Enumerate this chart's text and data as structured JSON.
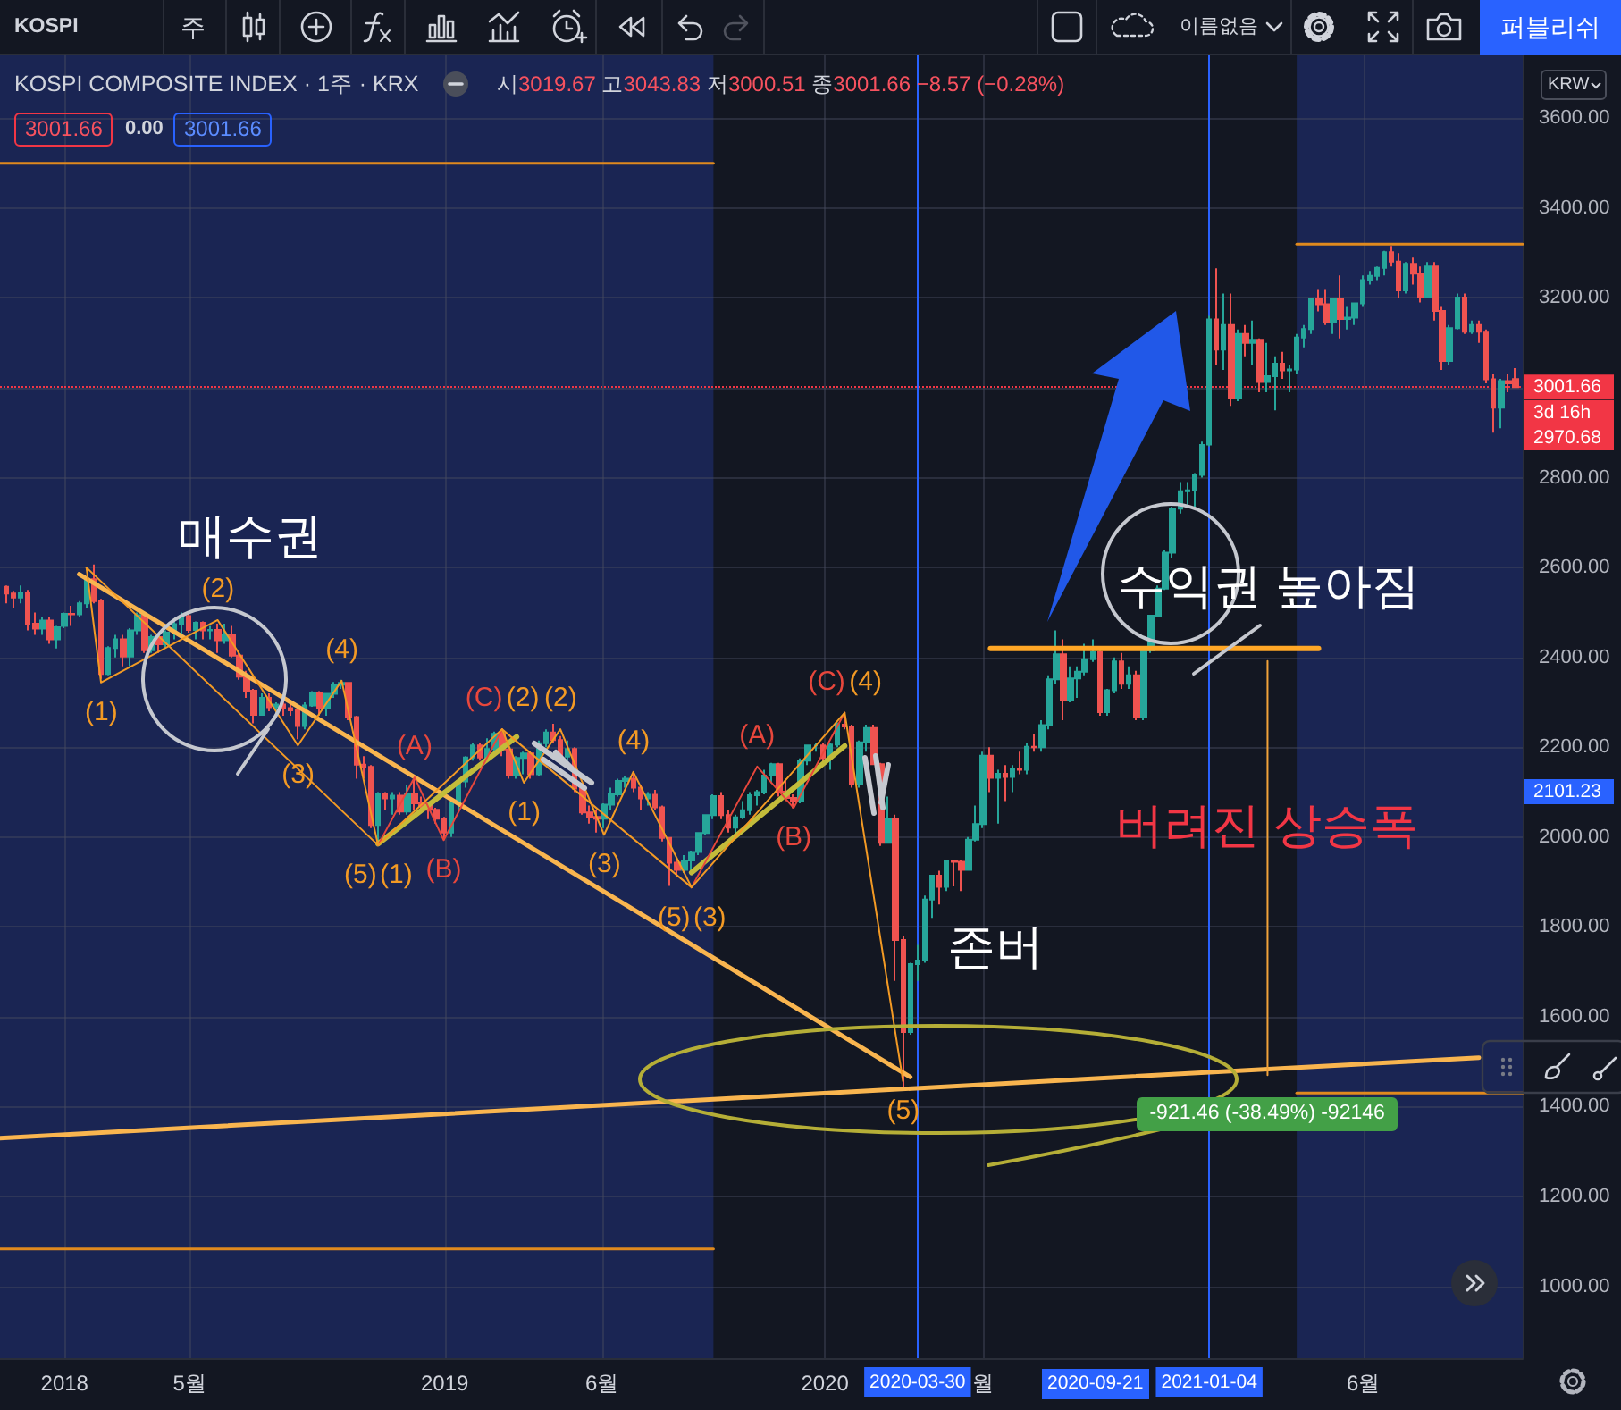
{
  "chart_data": {
    "type": "candlestick",
    "title": "KOSPI COMPOSITE INDEX · 1주 · KRX",
    "subtitle": "시3019.67 고3043.83 저3000.51 종3001.66 −8.57 (−0.28%)",
    "x": [
      "2017-11-06",
      "2017-11-13",
      "2017-11-20",
      "2017-11-27",
      "2017-12-04",
      "2017-12-11",
      "2017-12-18",
      "2017-12-25",
      "2018-01-01",
      "2018-01-08",
      "2018-01-15",
      "2018-01-22",
      "2018-01-29",
      "2018-02-05",
      "2018-02-12",
      "2018-02-19",
      "2018-02-26",
      "2018-03-05",
      "2018-03-12",
      "2018-03-19",
      "2018-03-26",
      "2018-04-02",
      "2018-04-09",
      "2018-04-16",
      "2018-04-23",
      "2018-04-30",
      "2018-05-07",
      "2018-05-14",
      "2018-05-21",
      "2018-05-28",
      "2018-06-04",
      "2018-06-11",
      "2018-06-18",
      "2018-06-25",
      "2018-07-02",
      "2018-07-09",
      "2018-07-16",
      "2018-07-23",
      "2018-07-30",
      "2018-08-06",
      "2018-08-13",
      "2018-08-20",
      "2018-08-27",
      "2018-09-03",
      "2018-09-10",
      "2018-09-17",
      "2018-09-24",
      "2018-10-01",
      "2018-10-08",
      "2018-10-15",
      "2018-10-22",
      "2018-10-29",
      "2018-11-05",
      "2018-11-12",
      "2018-11-19",
      "2018-11-26",
      "2018-12-03",
      "2018-12-10",
      "2018-12-17",
      "2018-12-24",
      "2018-12-31",
      "2019-01-07",
      "2019-01-14",
      "2019-01-21",
      "2019-01-28",
      "2019-02-04",
      "2019-02-11",
      "2019-02-18",
      "2019-02-25",
      "2019-03-04",
      "2019-03-11",
      "2019-03-18",
      "2019-03-25",
      "2019-04-01",
      "2019-04-08",
      "2019-04-15",
      "2019-04-22",
      "2019-04-29",
      "2019-05-06",
      "2019-05-13",
      "2019-05-20",
      "2019-05-27",
      "2019-06-03",
      "2019-06-10",
      "2019-06-17",
      "2019-06-24",
      "2019-07-01",
      "2019-07-08",
      "2019-07-15",
      "2019-07-22",
      "2019-07-29",
      "2019-08-05",
      "2019-08-12",
      "2019-08-19",
      "2019-08-26",
      "2019-09-02",
      "2019-09-09",
      "2019-09-16",
      "2019-09-23",
      "2019-09-30",
      "2019-10-07",
      "2019-10-14",
      "2019-10-21",
      "2019-10-28",
      "2019-11-04",
      "2019-11-11",
      "2019-11-18",
      "2019-11-25",
      "2019-12-02",
      "2019-12-09",
      "2019-12-16",
      "2019-12-23",
      "2019-12-30",
      "2020-01-06",
      "2020-01-13",
      "2020-01-20",
      "2020-01-27",
      "2020-02-03",
      "2020-02-10",
      "2020-02-17",
      "2020-02-24",
      "2020-03-02",
      "2020-03-09",
      "2020-03-16",
      "2020-03-23",
      "2020-03-30",
      "2020-04-06",
      "2020-04-13",
      "2020-04-20",
      "2020-04-27",
      "2020-05-04",
      "2020-05-11",
      "2020-05-18",
      "2020-05-25",
      "2020-06-01",
      "2020-06-08",
      "2020-06-15",
      "2020-06-22",
      "2020-06-29",
      "2020-07-06",
      "2020-07-13",
      "2020-07-20",
      "2020-07-27",
      "2020-08-03",
      "2020-08-10",
      "2020-08-17",
      "2020-08-24",
      "2020-08-31",
      "2020-09-07",
      "2020-09-14",
      "2020-09-21",
      "2020-09-28",
      "2020-10-05",
      "2020-10-12",
      "2020-10-19",
      "2020-10-26",
      "2020-11-02",
      "2020-11-09",
      "2020-11-16",
      "2020-11-23",
      "2020-11-30",
      "2020-12-07",
      "2020-12-14",
      "2020-12-21",
      "2020-12-28",
      "2021-01-04",
      "2021-01-11",
      "2021-01-18",
      "2021-01-25",
      "2021-02-01",
      "2021-02-08",
      "2021-02-15",
      "2021-02-22",
      "2021-03-01",
      "2021-03-08",
      "2021-03-15",
      "2021-03-22",
      "2021-03-29",
      "2021-04-05",
      "2021-04-12",
      "2021-04-19",
      "2021-04-26",
      "2021-05-03",
      "2021-05-10",
      "2021-05-17",
      "2021-05-24",
      "2021-05-31",
      "2021-06-07",
      "2021-06-14",
      "2021-06-21",
      "2021-06-28",
      "2021-07-05",
      "2021-07-12",
      "2021-07-19",
      "2021-07-26",
      "2021-08-02",
      "2021-08-09",
      "2021-08-16",
      "2021-08-23",
      "2021-08-30",
      "2021-09-06",
      "2021-09-13",
      "2021-09-20",
      "2021-09-27",
      "2021-10-04",
      "2021-10-11",
      "2021-10-18",
      "2021-10-25"
    ],
    "ohlc": [
      [
        2557,
        2560,
        2520,
        2542
      ],
      [
        2542,
        2548,
        2510,
        2533
      ],
      [
        2533,
        2560,
        2520,
        2544
      ],
      [
        2544,
        2550,
        2460,
        2475
      ],
      [
        2475,
        2500,
        2450,
        2464
      ],
      [
        2464,
        2490,
        2450,
        2482
      ],
      [
        2482,
        2490,
        2430,
        2440
      ],
      [
        2440,
        2470,
        2420,
        2467
      ],
      [
        2470,
        2500,
        2465,
        2497
      ],
      [
        2497,
        2515,
        2470,
        2496
      ],
      [
        2496,
        2525,
        2490,
        2520
      ],
      [
        2520,
        2580,
        2510,
        2574
      ],
      [
        2574,
        2607,
        2520,
        2525
      ],
      [
        2525,
        2530,
        2352,
        2363
      ],
      [
        2363,
        2425,
        2360,
        2421
      ],
      [
        2421,
        2450,
        2400,
        2440
      ],
      [
        2440,
        2450,
        2380,
        2402
      ],
      [
        2402,
        2465,
        2380,
        2460
      ],
      [
        2460,
        2500,
        2450,
        2494
      ],
      [
        2494,
        2500,
        2410,
        2416
      ],
      [
        2416,
        2450,
        2410,
        2445
      ],
      [
        2445,
        2450,
        2410,
        2429
      ],
      [
        2429,
        2460,
        2420,
        2455
      ],
      [
        2455,
        2480,
        2440,
        2474
      ],
      [
        2474,
        2500,
        2440,
        2492
      ],
      [
        2492,
        2500,
        2455,
        2461
      ],
      [
        2461,
        2480,
        2440,
        2477
      ],
      [
        2477,
        2480,
        2440,
        2460
      ],
      [
        2460,
        2470,
        2440,
        2461
      ],
      [
        2461,
        2475,
        2410,
        2438
      ],
      [
        2438,
        2475,
        2430,
        2451
      ],
      [
        2451,
        2470,
        2400,
        2404
      ],
      [
        2404,
        2410,
        2350,
        2357
      ],
      [
        2357,
        2370,
        2310,
        2326
      ],
      [
        2326,
        2330,
        2253,
        2272
      ],
      [
        2272,
        2320,
        2270,
        2310
      ],
      [
        2310,
        2320,
        2280,
        2289
      ],
      [
        2289,
        2300,
        2270,
        2295
      ],
      [
        2295,
        2310,
        2270,
        2287
      ],
      [
        2287,
        2305,
        2270,
        2282
      ],
      [
        2282,
        2285,
        2218,
        2247
      ],
      [
        2247,
        2300,
        2240,
        2293
      ],
      [
        2293,
        2325,
        2290,
        2322
      ],
      [
        2322,
        2325,
        2270,
        2287
      ],
      [
        2287,
        2320,
        2270,
        2319
      ],
      [
        2319,
        2345,
        2310,
        2339
      ],
      [
        2339,
        2350,
        2330,
        2343
      ],
      [
        2343,
        2345,
        2260,
        2267
      ],
      [
        2267,
        2270,
        2130,
        2161
      ],
      [
        2161,
        2180,
        2130,
        2156
      ],
      [
        2156,
        2160,
        2020,
        2027
      ],
      [
        2027,
        2100,
        1985,
        2096
      ],
      [
        2096,
        2100,
        2060,
        2086
      ],
      [
        2086,
        2100,
        2050,
        2092
      ],
      [
        2092,
        2100,
        2050,
        2057
      ],
      [
        2057,
        2115,
        2050,
        2097
      ],
      [
        2097,
        2136,
        2060,
        2075
      ],
      [
        2075,
        2090,
        2060,
        2069
      ],
      [
        2069,
        2075,
        2040,
        2061
      ],
      [
        2061,
        2065,
        2030,
        2041
      ],
      [
        2041,
        2045,
        1993,
        2010
      ],
      [
        2010,
        2080,
        2000,
        2075
      ],
      [
        2075,
        2125,
        2060,
        2124
      ],
      [
        2124,
        2180,
        2110,
        2177
      ],
      [
        2177,
        2210,
        2170,
        2204
      ],
      [
        2204,
        2210,
        2170,
        2177
      ],
      [
        2177,
        2220,
        2170,
        2196
      ],
      [
        2196,
        2235,
        2190,
        2230
      ],
      [
        2230,
        2236,
        2180,
        2195
      ],
      [
        2195,
        2200,
        2130,
        2137
      ],
      [
        2137,
        2180,
        2130,
        2176
      ],
      [
        2176,
        2190,
        2140,
        2186
      ],
      [
        2186,
        2190,
        2130,
        2140
      ],
      [
        2140,
        2215,
        2135,
        2209
      ],
      [
        2209,
        2240,
        2200,
        2233
      ],
      [
        2233,
        2252,
        2210,
        2216
      ],
      [
        2216,
        2225,
        2170,
        2179
      ],
      [
        2179,
        2215,
        2170,
        2196
      ],
      [
        2196,
        2200,
        2100,
        2108
      ],
      [
        2108,
        2110,
        2050,
        2055
      ],
      [
        2055,
        2070,
        2030,
        2045
      ],
      [
        2045,
        2060,
        2010,
        2041
      ],
      [
        2041,
        2075,
        2020,
        2072
      ],
      [
        2072,
        2110,
        2060,
        2095
      ],
      [
        2095,
        2130,
        2090,
        2125
      ],
      [
        2125,
        2135,
        2110,
        2130
      ],
      [
        2130,
        2141,
        2100,
        2110
      ],
      [
        2110,
        2115,
        2060,
        2086
      ],
      [
        2086,
        2100,
        2070,
        2094
      ],
      [
        2094,
        2105,
        2060,
        2066
      ],
      [
        2066,
        2070,
        1990,
        1998
      ],
      [
        1998,
        2000,
        1891,
        1943
      ],
      [
        1943,
        1950,
        1910,
        1927
      ],
      [
        1927,
        1960,
        1920,
        1948
      ],
      [
        1948,
        1970,
        1920,
        1967
      ],
      [
        1967,
        2010,
        1960,
        2009
      ],
      [
        2009,
        2050,
        2005,
        2049
      ],
      [
        2049,
        2095,
        2040,
        2091
      ],
      [
        2091,
        2100,
        2040,
        2049
      ],
      [
        2049,
        2060,
        2010,
        2021
      ],
      [
        2021,
        2050,
        2000,
        2044
      ],
      [
        2044,
        2080,
        2040,
        2060
      ],
      [
        2060,
        2100,
        2050,
        2093
      ],
      [
        2093,
        2105,
        2070,
        2100
      ],
      [
        2100,
        2150,
        2095,
        2137
      ],
      [
        2137,
        2165,
        2120,
        2162
      ],
      [
        2162,
        2165,
        2090,
        2101
      ],
      [
        2101,
        2130,
        2080,
        2087
      ],
      [
        2087,
        2095,
        2064,
        2081
      ],
      [
        2081,
        2175,
        2075,
        2170
      ],
      [
        2170,
        2205,
        2160,
        2204
      ],
      [
        2204,
        2210,
        2190,
        2204
      ],
      [
        2204,
        2210,
        2160,
        2176
      ],
      [
        2176,
        2210,
        2150,
        2206
      ],
      [
        2206,
        2255,
        2200,
        2250
      ],
      [
        2250,
        2277,
        2240,
        2246
      ],
      [
        2246,
        2250,
        2110,
        2119
      ],
      [
        2119,
        2215,
        2110,
        2211
      ],
      [
        2211,
        2250,
        2190,
        2243
      ],
      [
        2243,
        2250,
        2160,
        2162
      ],
      [
        2162,
        2165,
        1980,
        1987
      ],
      [
        1987,
        2090,
        1985,
        2040
      ],
      [
        2040,
        2050,
        1680,
        1771
      ],
      [
        1771,
        1780,
        1439,
        1566
      ],
      [
        1566,
        1720,
        1560,
        1717
      ],
      [
        1717,
        1760,
        1680,
        1725
      ],
      [
        1725,
        1870,
        1720,
        1861
      ],
      [
        1861,
        1915,
        1820,
        1914
      ],
      [
        1914,
        1925,
        1850,
        1889
      ],
      [
        1889,
        1950,
        1880,
        1947
      ],
      [
        1947,
        1950,
        1890,
        1945
      ],
      [
        1945,
        1950,
        1880,
        1927
      ],
      [
        1927,
        2000,
        1925,
        1994
      ],
      [
        1994,
        2070,
        1990,
        2029
      ],
      [
        2029,
        2190,
        2020,
        2181
      ],
      [
        2181,
        2200,
        2100,
        2132
      ],
      [
        2132,
        2150,
        2030,
        2141
      ],
      [
        2141,
        2160,
        2080,
        2134
      ],
      [
        2134,
        2160,
        2100,
        2152
      ],
      [
        2152,
        2190,
        2140,
        2150
      ],
      [
        2150,
        2210,
        2140,
        2201
      ],
      [
        2201,
        2230,
        2190,
        2200
      ],
      [
        2200,
        2260,
        2190,
        2249
      ],
      [
        2249,
        2360,
        2240,
        2351
      ],
      [
        2351,
        2460,
        2340,
        2407
      ],
      [
        2407,
        2440,
        2260,
        2304
      ],
      [
        2304,
        2380,
        2300,
        2353
      ],
      [
        2353,
        2380,
        2310,
        2368
      ],
      [
        2368,
        2430,
        2360,
        2396
      ],
      [
        2396,
        2440,
        2390,
        2412
      ],
      [
        2412,
        2415,
        2270,
        2278
      ],
      [
        2278,
        2330,
        2270,
        2327
      ],
      [
        2327,
        2400,
        2320,
        2391
      ],
      [
        2391,
        2410,
        2330,
        2341
      ],
      [
        2341,
        2380,
        2330,
        2360
      ],
      [
        2360,
        2370,
        2260,
        2267
      ],
      [
        2267,
        2420,
        2260,
        2416
      ],
      [
        2416,
        2495,
        2410,
        2493
      ],
      [
        2493,
        2560,
        2490,
        2553
      ],
      [
        2553,
        2640,
        2550,
        2633
      ],
      [
        2633,
        2735,
        2620,
        2731
      ],
      [
        2731,
        2790,
        2720,
        2770
      ],
      [
        2770,
        2790,
        2740,
        2772
      ],
      [
        2772,
        2810,
        2730,
        2806
      ],
      [
        2806,
        2880,
        2800,
        2873
      ],
      [
        2874,
        3160,
        2870,
        3152
      ],
      [
        3152,
        3266,
        3050,
        3085
      ],
      [
        3085,
        3210,
        3040,
        3140
      ],
      [
        3140,
        3210,
        2960,
        2976
      ],
      [
        2976,
        3130,
        2970,
        3120
      ],
      [
        3120,
        3140,
        3070,
        3100
      ],
      [
        3100,
        3150,
        3050,
        3107
      ],
      [
        3107,
        3110,
        2990,
        3013
      ],
      [
        3013,
        3100,
        2990,
        3026
      ],
      [
        3026,
        3070,
        2950,
        3054
      ],
      [
        3054,
        3080,
        3020,
        3039
      ],
      [
        3039,
        3050,
        2990,
        3041
      ],
      [
        3041,
        3120,
        3030,
        3112
      ],
      [
        3112,
        3140,
        3090,
        3131
      ],
      [
        3131,
        3200,
        3120,
        3198
      ],
      [
        3198,
        3220,
        3170,
        3186
      ],
      [
        3186,
        3220,
        3140,
        3147
      ],
      [
        3147,
        3200,
        3120,
        3197
      ],
      [
        3197,
        3250,
        3110,
        3153
      ],
      [
        3153,
        3180,
        3130,
        3156
      ],
      [
        3156,
        3190,
        3140,
        3188
      ],
      [
        3188,
        3250,
        3180,
        3240
      ],
      [
        3240,
        3260,
        3230,
        3249
      ],
      [
        3249,
        3270,
        3240,
        3267
      ],
      [
        3267,
        3305,
        3250,
        3302
      ],
      [
        3302,
        3316,
        3270,
        3281
      ],
      [
        3281,
        3300,
        3200,
        3217
      ],
      [
        3217,
        3280,
        3210,
        3276
      ],
      [
        3276,
        3290,
        3230,
        3254
      ],
      [
        3254,
        3270,
        3190,
        3202
      ],
      [
        3202,
        3280,
        3200,
        3270
      ],
      [
        3270,
        3280,
        3150,
        3171
      ],
      [
        3171,
        3180,
        3040,
        3060
      ],
      [
        3060,
        3140,
        3050,
        3133
      ],
      [
        3133,
        3210,
        3130,
        3201
      ],
      [
        3201,
        3210,
        3120,
        3125
      ],
      [
        3125,
        3150,
        3120,
        3140
      ],
      [
        3140,
        3150,
        3100,
        3125
      ],
      [
        3125,
        3130,
        3010,
        3019
      ],
      [
        3019,
        3030,
        2900,
        2956
      ],
      [
        2956,
        3020,
        2910,
        3015
      ],
      [
        3015,
        3030,
        2990,
        3010
      ],
      [
        3019.67,
        3043.83,
        3000.51,
        3001.66
      ]
    ],
    "colors": [
      "#ef5350",
      "#ef5350",
      "#26a69a",
      "#ef5350",
      "#ef5350",
      "#26a69a",
      "#ef5350",
      "#26a69a",
      "#26a69a",
      "#ef5350",
      "#26a69a",
      "#26a69a",
      "#ef5350",
      "#ef5350",
      "#26a69a",
      "#26a69a",
      "#ef5350",
      "#26a69a",
      "#26a69a",
      "#ef5350",
      "#26a69a",
      "#ef5350",
      "#26a69a",
      "#26a69a",
      "#26a69a",
      "#ef5350",
      "#26a69a",
      "#ef5350",
      "#26a69a",
      "#ef5350",
      "#26a69a",
      "#ef5350",
      "#ef5350",
      "#ef5350",
      "#ef5350",
      "#26a69a",
      "#ef5350",
      "#26a69a",
      "#ef5350",
      "#ef5350",
      "#ef5350",
      "#26a69a",
      "#26a69a",
      "#ef5350",
      "#26a69a",
      "#26a69a",
      "#26a69a",
      "#ef5350",
      "#ef5350",
      "#ef5350",
      "#ef5350",
      "#26a69a",
      "#ef5350",
      "#26a69a",
      "#ef5350",
      "#26a69a",
      "#ef5350",
      "#ef5350",
      "#ef5350",
      "#ef5350",
      "#ef5350",
      "#26a69a",
      "#26a69a",
      "#26a69a",
      "#26a69a",
      "#ef5350",
      "#26a69a",
      "#26a69a",
      "#ef5350",
      "#ef5350",
      "#26a69a",
      "#26a69a",
      "#ef5350",
      "#26a69a",
      "#26a69a",
      "#ef5350",
      "#ef5350",
      "#26a69a",
      "#ef5350",
      "#ef5350",
      "#ef5350",
      "#ef5350",
      "#26a69a",
      "#26a69a",
      "#26a69a",
      "#26a69a",
      "#ef5350",
      "#ef5350",
      "#26a69a",
      "#ef5350",
      "#ef5350",
      "#ef5350",
      "#ef5350",
      "#26a69a",
      "#26a69a",
      "#26a69a",
      "#26a69a",
      "#26a69a",
      "#ef5350",
      "#ef5350",
      "#26a69a",
      "#26a69a",
      "#26a69a",
      "#26a69a",
      "#26a69a",
      "#26a69a",
      "#ef5350",
      "#ef5350",
      "#ef5350",
      "#26a69a",
      "#26a69a",
      "#26a69a",
      "#ef5350",
      "#26a69a",
      "#26a69a",
      "#ef5350",
      "#ef5350",
      "#26a69a",
      "#26a69a",
      "#ef5350",
      "#ef5350",
      "#26a69a",
      "#ef5350",
      "#ef5350",
      "#26a69a",
      "#26a69a",
      "#26a69a",
      "#26a69a",
      "#ef5350",
      "#26a69a",
      "#ef5350",
      "#ef5350",
      "#26a69a",
      "#26a69a",
      "#26a69a",
      "#ef5350",
      "#26a69a",
      "#ef5350",
      "#26a69a",
      "#ef5350",
      "#26a69a",
      "#ef5350",
      "#26a69a",
      "#26a69a",
      "#26a69a",
      "#ef5350",
      "#26a69a",
      "#26a69a",
      "#26a69a",
      "#26a69a",
      "#ef5350",
      "#26a69a",
      "#26a69a",
      "#ef5350",
      "#26a69a",
      "#ef5350",
      "#26a69a",
      "#26a69a",
      "#26a69a",
      "#26a69a",
      "#26a69a",
      "#26a69a",
      "#26a69a",
      "#26a69a",
      "#26a69a",
      "#26a69a",
      "#ef5350",
      "#26a69a",
      "#ef5350",
      "#26a69a",
      "#ef5350",
      "#26a69a",
      "#ef5350",
      "#26a69a",
      "#26a69a",
      "#ef5350",
      "#26a69a",
      "#26a69a",
      "#26a69a",
      "#26a69a",
      "#ef5350",
      "#ef5350",
      "#26a69a",
      "#ef5350",
      "#26a69a",
      "#26a69a",
      "#26a69a",
      "#26a69a",
      "#26a69a",
      "#26a69a",
      "#ef5350",
      "#ef5350",
      "#26a69a",
      "#ef5350",
      "#ef5350",
      "#26a69a",
      "#ef5350",
      "#ef5350",
      "#26a69a",
      "#26a69a",
      "#ef5350",
      "#26a69a",
      "#ef5350",
      "#ef5350",
      "#ef5350",
      "#26a69a",
      "#ef5350",
      "#ef5350"
    ],
    "series": [
      {
        "type": "line",
        "x": [
          "2018-01-15",
          "2020-03-23"
        ],
        "values": [
          2585,
          1466
        ],
        "color": "#f9b54f"
      },
      {
        "type": "line",
        "x": [
          "2017-10-31",
          "2021-09-20"
        ],
        "values": [
          1330,
          1509
        ],
        "color": "#f9b54f"
      },
      {
        "type": "line",
        "x": [
          "2020-06-08",
          "2021-04-19"
        ],
        "values": [
          2420,
          2420
        ],
        "color": "#ffa726"
      },
      {
        "type": "line",
        "x": [
          "2018-10-29",
          "2019-03-11"
        ],
        "values": [
          1985,
          2223
        ],
        "color": "#c3bc3a"
      },
      {
        "type": "line",
        "x": [
          "2019-08-26",
          "2020-01-20"
        ],
        "values": [
          1921,
          2203
        ],
        "color": "#c3bc3a"
      },
      {
        "type": "line",
        "x": [
          "2018-01-22",
          "2018-02-05",
          "2018-05-28",
          "2018-08-13",
          "2018-09-24",
          "2018-10-29"
        ],
        "values": [
          2600,
          2344,
          2483,
          2204,
          2348,
          1982
        ],
        "color": "#f39a24"
      },
      {
        "type": "line",
        "x": [
          "2018-10-29",
          "2018-12-03",
          "2018-12-31",
          "2019-02-25"
        ],
        "values": [
          1982,
          2133,
          1993,
          2240
        ],
        "color": "#e8473c"
      },
      {
        "type": "line",
        "x": [
          "2019-02-25",
          "2019-03-18",
          "2019-04-22",
          "2019-06-03",
          "2019-07-01",
          "2019-08-26"
        ],
        "values": [
          2240,
          2121,
          2240,
          2005,
          2145,
          1888
        ],
        "color": "#f39a24"
      },
      {
        "type": "line",
        "x": [
          "2019-08-26",
          "2019-10-28",
          "2019-12-02",
          "2020-01-20"
        ],
        "values": [
          1888,
          2157,
          2065,
          2277
        ],
        "color": "#e8473c"
      },
      {
        "type": "line",
        "x": [
          "2018-01-22",
          "2018-10-29",
          "2019-02-25",
          "2019-08-26",
          "2020-01-20",
          "2020-03-16"
        ],
        "values": [
          2600,
          1982,
          2240,
          1888,
          2277,
          1457
        ],
        "color": "#f39a24"
      },
      {
        "type": "line",
        "x": [
          "2017-10-31",
          "2019-09-16"
        ],
        "values": [
          3500,
          3500
        ],
        "color": "#e08a1e"
      },
      {
        "type": "line",
        "x": [
          "2017-10-31",
          "2019-09-16"
        ],
        "values": [
          1083,
          1083
        ],
        "color": "#e08a1e"
      },
      {
        "type": "line",
        "x": [
          "2021-03-29",
          "2021-11-01"
        ],
        "values": [
          3320,
          3320
        ],
        "color": "#e08a1e"
      },
      {
        "type": "line",
        "x": [
          "2021-03-29",
          "2021-11-01"
        ],
        "values": [
          1430,
          1430
        ],
        "color": "#e08a1e"
      },
      {
        "type": "line",
        "x": [
          "2021-03-01",
          "2021-03-01"
        ],
        "values": [
          2392,
          1470
        ],
        "color": "#f2a33a"
      }
    ],
    "xlim": [
      "2017-10-31",
      "2021-11-01"
    ],
    "xticks": [
      {
        "value": "2018-01-01",
        "label": "2018"
      },
      {
        "value": "2018-05-01",
        "label": "5월"
      },
      {
        "value": "2019-01-01",
        "label": "2019"
      },
      {
        "value": "2019-06-01",
        "label": "6월"
      },
      {
        "value": "2020-01-01",
        "label": "2020"
      },
      {
        "value": "2020-06-01",
        "label": "월"
      },
      {
        "value": "2021-06-01",
        "label": "6월"
      }
    ],
    "ylim": [
      840,
      3740
    ],
    "yticks": [
      {
        "value": 1000,
        "label": "1000.00"
      },
      {
        "value": 1200,
        "label": "1200.00"
      },
      {
        "value": 1400,
        "label": "1400.00"
      },
      {
        "value": 1600,
        "label": "1600.00"
      },
      {
        "value": 1800,
        "label": "1800.00"
      },
      {
        "value": 2000,
        "label": "2000.00"
      },
      {
        "value": 2200,
        "label": "2200.00"
      },
      {
        "value": 2400,
        "label": "2400.00"
      },
      {
        "value": 2600,
        "label": "2600.00"
      },
      {
        "value": 2800,
        "label": "2800.00"
      },
      {
        "value": 3000,
        "label": null
      },
      {
        "value": 3200,
        "label": "3200.00"
      },
      {
        "value": 3400,
        "label": "3400.00"
      },
      {
        "value": 3600,
        "label": "3600.00"
      }
    ],
    "grid": true,
    "bands": [
      {
        "axis": "x",
        "from": "2017-10-31",
        "to": "2019-09-16",
        "color": "#1a2553"
      },
      {
        "axis": "x",
        "from": "2021-03-29",
        "to": "2021-11-01",
        "color": "#1a2553"
      }
    ],
    "ref_lines": [
      {
        "axis": "y",
        "value": 3001.66,
        "label": "3001.66",
        "color": "#f23645",
        "line_style": "dotted"
      },
      {
        "axis": "x",
        "value": "2020-03-30",
        "label": "2020-03-30",
        "color": "#2962ff"
      },
      {
        "axis": "x",
        "value": "2021-01-04",
        "label": "2021-01-04",
        "color": "#2962ff"
      }
    ],
    "annotations": [
      "KOSPI",
      "주",
      "이름없음",
      "퍼블리쉬",
      "KRW",
      "3001.66",
      "0.00",
      "3001.66",
      "3d 16h",
      "2970.68",
      "2101.23",
      "2020-09-21",
      "매수권",
      "수익권 높아짐",
      "존버",
      {
        "text": "버려진 상승폭",
        "x": "2021-03-01",
        "y": 2026
      },
      {
        "text": "-921.46 (-38.49%) -92146",
        "x": "2021-03-01",
        "y": 1470
      },
      {
        "text": "(1)",
        "x": "2018-02-05",
        "y": 2344
      },
      {
        "text": "(2)",
        "x": "2018-05-28",
        "y": 2483
      },
      {
        "text": "(3)",
        "x": "2018-08-13",
        "y": 2204
      },
      {
        "text": "(4)",
        "x": "2018-09-24",
        "y": 2348
      },
      {
        "text": "(5)",
        "x": "2018-10-29",
        "y": 1982
      },
      {
        "text": "(A)",
        "x": "2018-12-03",
        "y": 2133
      },
      {
        "text": "(B)",
        "x": "2018-12-31",
        "y": 1993
      },
      {
        "text": "(C)",
        "x": "2019-02-25",
        "y": 2240
      },
      {
        "text": "(1)",
        "x": "2019-03-18",
        "y": 2121
      },
      {
        "text": "(2)",
        "x": "2019-04-22",
        "y": 2240
      },
      {
        "text": "(3)",
        "x": "2019-06-03",
        "y": 2005
      },
      {
        "text": "(4)",
        "x": "2019-07-01",
        "y": 2145
      },
      {
        "text": "(5)",
        "x": "2019-08-26",
        "y": 1888
      },
      {
        "text": "(A)",
        "x": "2019-10-28",
        "y": 2157
      },
      {
        "text": "(B)",
        "x": "2019-12-02",
        "y": 2065
      },
      {
        "text": "(C)",
        "x": "2020-01-20",
        "y": 2277
      },
      {
        "text": "(1)",
        "x": "2018-10-29",
        "y": 1982
      },
      {
        "text": "(2)",
        "x": "2019-02-25",
        "y": 2240
      },
      {
        "text": "(3)",
        "x": "2019-08-26",
        "y": 1888
      },
      {
        "text": "(4)",
        "x": "2020-01-20",
        "y": 2277
      },
      {
        "text": "(5)",
        "x": "2020-03-16",
        "y": 1457
      }
    ]
  }
}
